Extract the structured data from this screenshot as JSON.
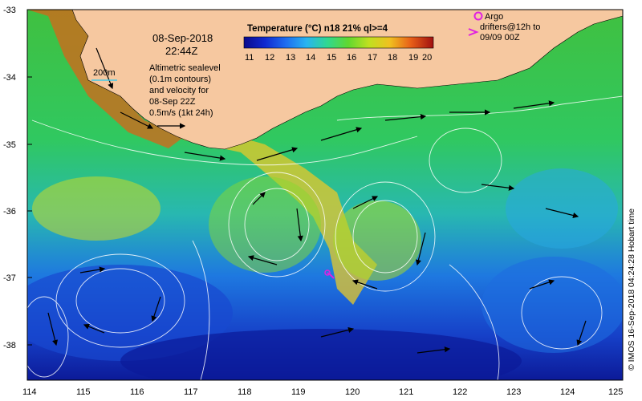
{
  "header": {
    "date": "08-Sep-2018",
    "time": "22:44Z"
  },
  "colorbar": {
    "title": "Temperature (°C) n18 21% ql>=4",
    "ticks": [
      "11",
      "12",
      "13",
      "14",
      "15",
      "16",
      "17",
      "18",
      "19",
      "20"
    ],
    "colors": [
      "#0a0a8c",
      "#1028d0",
      "#1e6cf0",
      "#28b4f0",
      "#30d890",
      "#60d830",
      "#c0e020",
      "#f0c020",
      "#e86018",
      "#a01010"
    ]
  },
  "contour_legend": {
    "label": "200m",
    "color": "#40c8e8"
  },
  "description": {
    "line1": "Altimetric sealevel",
    "line2": "(0.1m contours)",
    "line3": "and velocity for",
    "line4": "08-Sep 22Z",
    "line5": "0.5m/s (1kt 24h)"
  },
  "argo_legend": {
    "line1": "Argo",
    "line2": "drifters@12h to",
    "line3": "09/09 00Z",
    "color": "#e020e0"
  },
  "credit": "© IMOS 16-Sep-2018 04:24:28 Hobart time",
  "axes": {
    "x_ticks": [
      "114",
      "115",
      "116",
      "117",
      "118",
      "119",
      "120",
      "121",
      "122",
      "123",
      "124",
      "125"
    ],
    "y_ticks": [
      "-33",
      "-34",
      "-35",
      "-36",
      "-37",
      "-38"
    ]
  },
  "colors": {
    "land": "#f6c8a0",
    "frame": "#000000",
    "contour": "#ffffff"
  }
}
